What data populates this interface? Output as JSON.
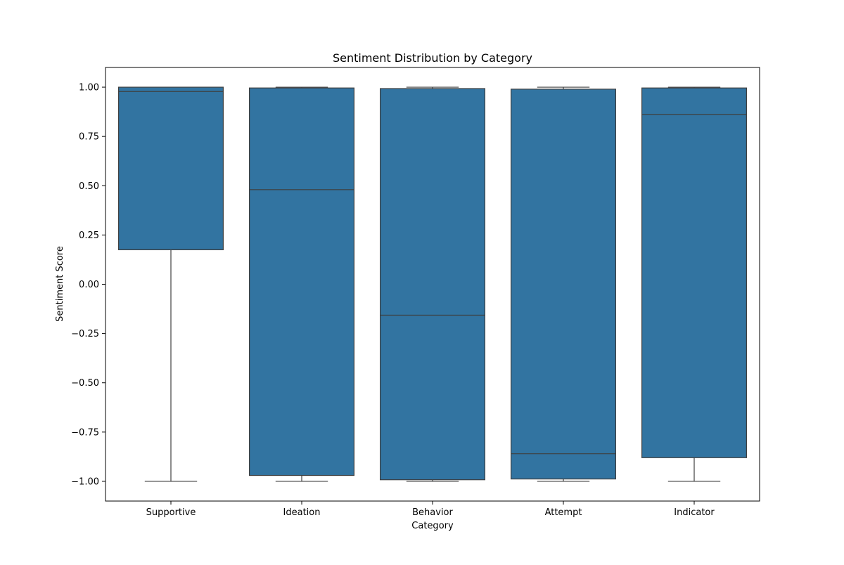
{
  "chart_data": {
    "type": "box",
    "title": "Sentiment Distribution by Category",
    "xlabel": "Category",
    "ylabel": "Sentiment Score",
    "ylim": [
      -1.1,
      1.1
    ],
    "yticks": [
      1.0,
      0.75,
      0.5,
      0.25,
      0.0,
      -0.25,
      -0.5,
      -0.75,
      -1.0
    ],
    "ytick_labels": [
      "1.00",
      "0.75",
      "0.50",
      "0.25",
      "0.00",
      "−0.25",
      "−0.50",
      "−0.75",
      "−1.00"
    ],
    "grid": false,
    "legend": "none",
    "colors": {
      "box_fill": "#3274a1",
      "line": "#3f3f3f",
      "frame": "#000000"
    },
    "categories": [
      "Supportive",
      "Ideation",
      "Behavior",
      "Attempt",
      "Indicator"
    ],
    "boxes": [
      {
        "category": "Supportive",
        "whisker_low": -0.9999,
        "q1": 0.175,
        "median": 0.978,
        "q3": 1.0,
        "whisker_high": 1.0
      },
      {
        "category": "Ideation",
        "whisker_low": -0.9999,
        "q1": -0.97,
        "median": 0.48,
        "q3": 0.996,
        "whisker_high": 1.0
      },
      {
        "category": "Behavior",
        "whisker_low": -0.9999,
        "q1": -0.992,
        "median": -0.157,
        "q3": 0.993,
        "whisker_high": 1.0
      },
      {
        "category": "Attempt",
        "whisker_low": -0.9999,
        "q1": -0.988,
        "median": -0.86,
        "q3": 0.99,
        "whisker_high": 1.0
      },
      {
        "category": "Indicator",
        "whisker_low": -0.9999,
        "q1": -0.88,
        "median": 0.862,
        "q3": 0.996,
        "whisker_high": 1.0
      }
    ]
  }
}
